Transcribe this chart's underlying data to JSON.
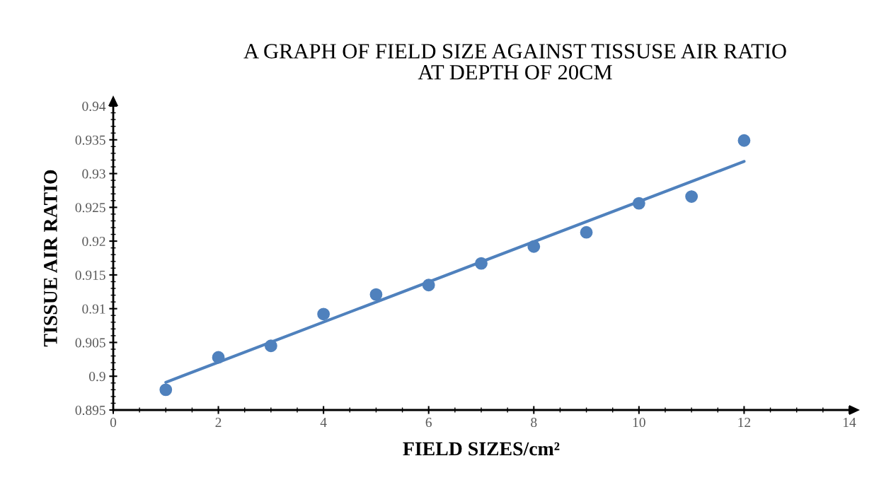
{
  "chart_data": {
    "type": "scatter",
    "title": "A GRAPH OF FIELD SIZE AGAINST TISSUSE AIR RATIO\nAT DEPTH OF 20CM",
    "xlabel": "FIELD SIZES/cm²",
    "ylabel": "TISSUE AIR RATIO",
    "x": [
      1,
      2,
      3,
      4,
      5,
      6,
      7,
      8,
      9,
      10,
      11,
      12
    ],
    "series": [
      {
        "type": "scatter",
        "color": "#4f81bd",
        "marker": "circle",
        "values": [
          0.898,
          0.9028,
          0.9045,
          0.9092,
          0.9121,
          0.9135,
          0.9167,
          0.9192,
          0.9213,
          0.9256,
          0.9266,
          0.9349
        ]
      },
      {
        "type": "line",
        "color": "#4f81bd",
        "marker": "none",
        "line_style": "solid",
        "x": [
          1,
          12
        ],
        "values": [
          0.8991,
          0.9318
        ]
      }
    ],
    "xlim": [
      0,
      14
    ],
    "xticks": [
      0,
      2,
      4,
      6,
      8,
      10,
      12,
      14
    ],
    "ylim": [
      0.895,
      0.94
    ],
    "yticks": [
      0.895,
      0.9,
      0.905,
      0.91,
      0.915,
      0.92,
      0.925,
      0.93,
      0.935,
      0.94
    ],
    "grid": false,
    "legend": false
  }
}
